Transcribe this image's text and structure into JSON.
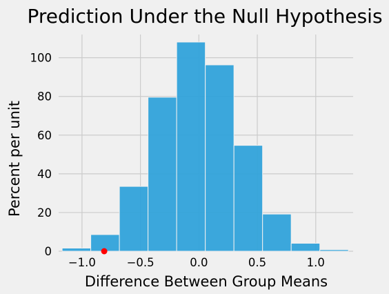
{
  "chart_data": {
    "type": "bar",
    "title": "Prediction Under the Null Hypothesis",
    "xlabel": "Difference Between Group Means",
    "ylabel": "Percent per unit",
    "xlim": [
      -1.2,
      1.32
    ],
    "ylim": [
      0,
      112
    ],
    "grid": true,
    "bar_color": "#30a2da",
    "marker_color": "#ff0000",
    "xticks": [
      {
        "value": -1.0,
        "label": "−1.0"
      },
      {
        "value": -0.5,
        "label": "−0.5"
      },
      {
        "value": 0.0,
        "label": "0.0"
      },
      {
        "value": 0.5,
        "label": "0.5"
      },
      {
        "value": 1.0,
        "label": "1.0"
      }
    ],
    "yticks": [
      {
        "value": 0,
        "label": "0"
      },
      {
        "value": 20,
        "label": "20"
      },
      {
        "value": 40,
        "label": "40"
      },
      {
        "value": 60,
        "label": "60"
      },
      {
        "value": 80,
        "label": "80"
      },
      {
        "value": 100,
        "label": "100"
      }
    ],
    "bins": [
      {
        "left": -1.17,
        "right": -0.925,
        "value": 1.6
      },
      {
        "left": -0.925,
        "right": -0.68,
        "value": 8.6
      },
      {
        "left": -0.68,
        "right": -0.435,
        "value": 33.5
      },
      {
        "left": -0.435,
        "right": -0.19,
        "value": 79.6
      },
      {
        "left": -0.19,
        "right": 0.055,
        "value": 108.1
      },
      {
        "left": 0.055,
        "right": 0.3,
        "value": 96.3
      },
      {
        "left": 0.3,
        "right": 0.545,
        "value": 54.7
      },
      {
        "left": 0.545,
        "right": 0.79,
        "value": 19.2
      },
      {
        "left": 0.79,
        "right": 1.035,
        "value": 4.1
      },
      {
        "left": 1.035,
        "right": 1.28,
        "value": 0.8
      }
    ],
    "observed_point": {
      "x": -0.81,
      "y": 0
    }
  }
}
